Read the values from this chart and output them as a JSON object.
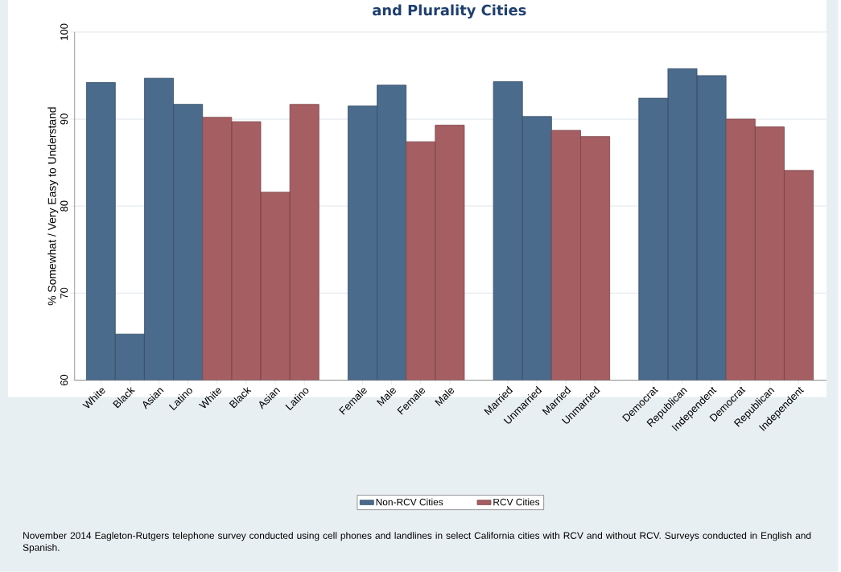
{
  "chart_data": {
    "type": "bar",
    "title": "and Plurality Cities",
    "ylabel": "% Somewhat / Very Easy to Understand",
    "categories": [
      "White",
      "Black",
      "Asian",
      "Latino",
      "White",
      "Black",
      "Asian",
      "Latino",
      null,
      "Female",
      "Male",
      "Female",
      "Male",
      null,
      "Married",
      "Unmarried",
      "Married",
      "Unmarried",
      null,
      "Democrat",
      "Republican",
      "Independent",
      "Democrat",
      "Republican",
      "Independent"
    ],
    "series": [
      {
        "name": "Non-RCV Cities",
        "color": "#4a6b8c",
        "values": [
          94.2,
          65.3,
          94.7,
          91.7,
          null,
          null,
          null,
          null,
          null,
          91.5,
          93.9,
          null,
          null,
          null,
          94.3,
          90.3,
          null,
          null,
          null,
          92.4,
          95.8,
          95.0,
          null,
          null,
          null
        ]
      },
      {
        "name": "RCV Cities",
        "color": "#a55e62",
        "values": [
          null,
          null,
          null,
          null,
          90.2,
          89.7,
          81.6,
          91.7,
          null,
          null,
          null,
          87.4,
          89.3,
          null,
          null,
          null,
          88.7,
          88.0,
          null,
          null,
          null,
          null,
          90.0,
          89.1,
          84.1
        ]
      }
    ],
    "ylim": [
      60,
      100
    ],
    "yticks": [
      60,
      70,
      80,
      90,
      100
    ],
    "grid": "y",
    "legend": "bottom",
    "annotations": [
      "November 2014 Eagleton-Rutgers telephone survey conducted using cell phones and landlines in select California cities with RCV and without RCV. Surveys conducted in English and Spanish."
    ]
  }
}
